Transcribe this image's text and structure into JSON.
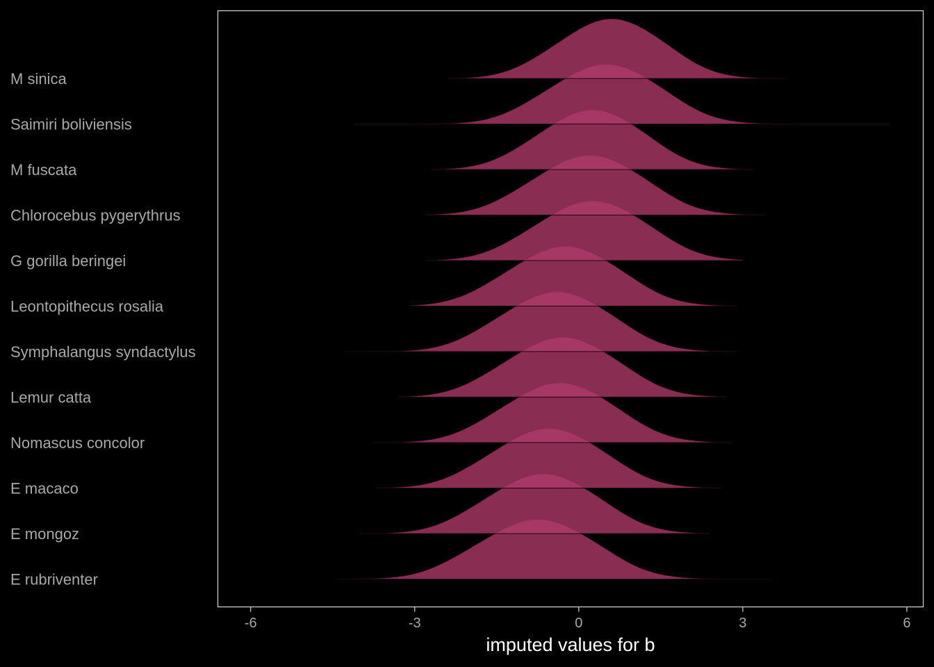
{
  "chart_data": {
    "type": "ridgeline",
    "title": "",
    "xlabel": "imputed values for b",
    "ylabel": "",
    "xlim": [
      -6.6,
      6.3
    ],
    "x_ticks": [
      {
        "value": -6,
        "label": "-6"
      },
      {
        "value": -3,
        "label": "-3"
      },
      {
        "value": 0,
        "label": "0"
      },
      {
        "value": 3,
        "label": "3"
      },
      {
        "value": 6,
        "label": "6"
      }
    ],
    "grid": false,
    "legend": "none",
    "colors": {
      "background": "#000000",
      "fill": "#b03a6a",
      "fill_opacity": 0.78,
      "outline": "#1a0710",
      "panel_border": "#d8d8d8",
      "text": "#a8a8a8",
      "axis_title": "#ffffff"
    },
    "categories": [
      "M sinica",
      "Saimiri boliviensis",
      "M fuscata",
      "Chlorocebus pygerythrus",
      "G gorilla beringei",
      "Leontopithecus rosalia",
      "Symphalangus syndactylus",
      "Lemur catta",
      "Nomascus concolor",
      "E macaco",
      "E mongoz",
      "E rubriventer"
    ],
    "series": [
      {
        "category": "M sinica",
        "mode": 0.6,
        "sd": 0.9,
        "range": [
          -2.4,
          3.8
        ]
      },
      {
        "category": "Saimiri boliviensis",
        "mode": 0.5,
        "sd": 0.95,
        "range": [
          -4.1,
          5.7
        ]
      },
      {
        "category": "M fuscata",
        "mode": 0.25,
        "sd": 0.9,
        "range": [
          -2.7,
          3.2
        ]
      },
      {
        "category": "Chlorocebus pygerythrus",
        "mode": 0.2,
        "sd": 0.95,
        "range": [
          -2.8,
          3.4
        ]
      },
      {
        "category": "G gorilla beringei",
        "mode": 0.25,
        "sd": 0.95,
        "range": [
          -2.8,
          3.0
        ]
      },
      {
        "category": "Leontopithecus rosalia",
        "mode": -0.25,
        "sd": 0.95,
        "range": [
          -3.1,
          2.9
        ]
      },
      {
        "category": "Symphalangus syndactylus",
        "mode": -0.4,
        "sd": 0.95,
        "range": [
          -4.3,
          2.9
        ]
      },
      {
        "category": "Lemur catta",
        "mode": -0.3,
        "sd": 0.95,
        "range": [
          -3.3,
          2.7
        ]
      },
      {
        "category": "Nomascus concolor",
        "mode": -0.35,
        "sd": 0.95,
        "range": [
          -3.8,
          2.8
        ]
      },
      {
        "category": "E macaco",
        "mode": -0.55,
        "sd": 0.95,
        "range": [
          -3.7,
          2.6
        ]
      },
      {
        "category": "E mongoz",
        "mode": -0.65,
        "sd": 0.95,
        "range": [
          -4.0,
          2.4
        ]
      },
      {
        "category": "E rubriventer",
        "mode": -0.75,
        "sd": 1.0,
        "range": [
          -4.4,
          3.5
        ]
      }
    ]
  }
}
